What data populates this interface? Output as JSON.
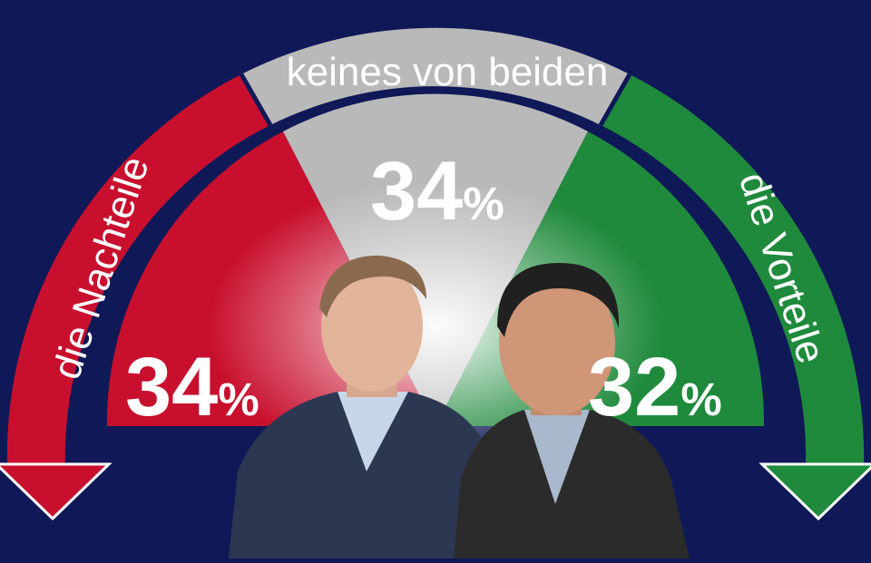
{
  "colors": {
    "background": "#0f1957",
    "negative": "#c8102e",
    "neutral": "#b9b9b9",
    "positive": "#1f8a3c",
    "text": "#ffffff"
  },
  "chart_data": {
    "type": "gauge",
    "title": "",
    "segments": [
      {
        "label": "die Nachteile",
        "value": 34,
        "unit": "%",
        "color": "#c8102e"
      },
      {
        "label": "keines von beiden",
        "value": 34,
        "unit": "%",
        "color": "#b9b9b9"
      },
      {
        "label": "die Vorteile",
        "value": 32,
        "unit": "%",
        "color": "#1f8a3c"
      }
    ]
  },
  "photos": [
    {
      "icon": "person-photo-left"
    },
    {
      "icon": "person-photo-right"
    }
  ]
}
